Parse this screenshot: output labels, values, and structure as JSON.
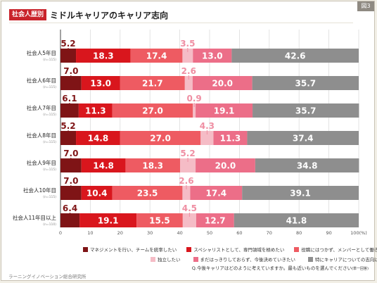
{
  "figure_tag": "図3",
  "header": {
    "badge": "社会人歴別",
    "title": "ミドルキャリアのキャリア志向"
  },
  "chart_data": {
    "type": "bar",
    "orientation": "horizontal",
    "stacked": true,
    "title": "ミドルキャリアのキャリア志向",
    "x_ticks": [
      "0",
      "10",
      "20",
      "30",
      "40",
      "50",
      "60",
      "70",
      "80",
      "90",
      "100(%)"
    ],
    "xlim": [
      0,
      100
    ],
    "grid": true,
    "legend_position": "bottom",
    "categories": [
      {
        "label": "社会人5年目",
        "n": "(n=115)"
      },
      {
        "label": "社会人6年目",
        "n": "(n=115)"
      },
      {
        "label": "社会人7年目",
        "n": "(n=115)"
      },
      {
        "label": "社会人8年目",
        "n": "(n=115)"
      },
      {
        "label": "社会人9年目",
        "n": "(n=115)"
      },
      {
        "label": "社会人10年目",
        "n": "(n=115)"
      },
      {
        "label": "社会人11年目以上",
        "n": "(n=110)"
      }
    ],
    "series": [
      {
        "name": "マネジメントを行い、チームを統率したい",
        "color": "#7f1416",
        "values": [
          5.2,
          7.0,
          6.1,
          5.2,
          7.0,
          7.0,
          6.4
        ]
      },
      {
        "name": "スペシャリストとして、専門領域を極めたい",
        "color": "#d9161d",
        "values": [
          18.3,
          13.0,
          11.3,
          14.8,
          14.8,
          10.4,
          19.1
        ]
      },
      {
        "name": "役職にはつかず、メンバーとして働きたい",
        "color": "#ee5b62",
        "values": [
          17.4,
          21.7,
          27.0,
          27.0,
          18.3,
          23.5,
          15.5
        ]
      },
      {
        "name": "独立したい",
        "color": "#f5bcc6",
        "values": [
          3.5,
          2.6,
          0.9,
          4.3,
          5.2,
          2.6,
          4.5
        ]
      },
      {
        "name": "まだはっきりしておらず、今後決めていきたい",
        "color": "#ec6e88",
        "values": [
          13.0,
          20.0,
          19.1,
          11.3,
          20.0,
          17.4,
          12.7
        ]
      },
      {
        "name": "特にキャリアについての志向はない",
        "color": "#8e8e8e",
        "values": [
          42.6,
          35.7,
          35.7,
          37.4,
          34.8,
          39.1,
          41.8
        ]
      }
    ]
  },
  "question": {
    "text": "Q.今後キャリアはどのように考えていますか。最も近いものを選んでください",
    "note": "(単一回答)"
  },
  "footer": {
    "source": "ラーニングイノベーション総合研究所"
  }
}
